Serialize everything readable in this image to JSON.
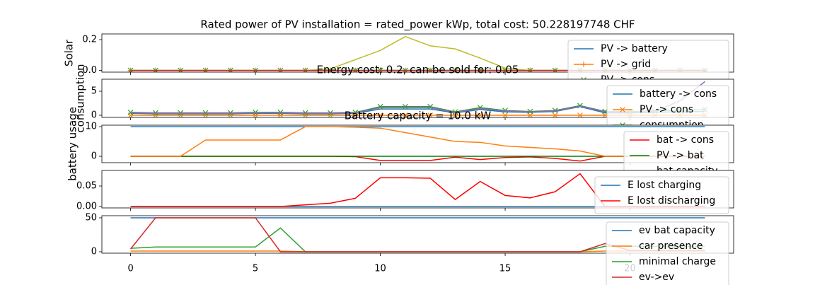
{
  "chart_data": [
    {
      "type": "line",
      "title": "Rated power of PV installation = rated_power kWp, total cost: 50.228197748 CHF",
      "ylabel": "Solar",
      "x": [
        0,
        1,
        2,
        3,
        4,
        5,
        6,
        7,
        8,
        9,
        10,
        11,
        12,
        13,
        14,
        15,
        16,
        17,
        18,
        19,
        20,
        21,
        22,
        23
      ],
      "xlim": [
        -1.15,
        24.15
      ],
      "xticks": [
        0,
        5,
        10,
        15,
        20
      ],
      "ylim": [
        -0.011,
        0.237
      ],
      "yticks": [
        {
          "value": 0,
          "label": "0.0"
        },
        {
          "value": 0.2,
          "label": "0.2"
        }
      ],
      "series": [
        {
          "name": "PV -> battery",
          "color": "#1f77b4",
          "marker": null,
          "values": [
            0,
            0,
            0,
            0,
            0,
            0,
            0,
            0,
            0,
            0,
            0,
            0,
            0,
            0,
            0,
            0,
            0,
            0,
            0,
            0,
            0,
            0,
            0,
            0
          ]
        },
        {
          "name": "PV -> grid",
          "color": "#ff7f0e",
          "marker": "+",
          "values": [
            0,
            0,
            0,
            0,
            0,
            0,
            0,
            0,
            0,
            0,
            0,
            0,
            0,
            0,
            0,
            0,
            0,
            0,
            0,
            0,
            0,
            0,
            0,
            0
          ]
        },
        {
          "name": "PV -> cons",
          "color": "#2ca02c",
          "marker": "x",
          "values": [
            0,
            0,
            0,
            0,
            0,
            0,
            0,
            0,
            0,
            0,
            0,
            0,
            0,
            0,
            0,
            0,
            0,
            0,
            0,
            0,
            0,
            0,
            0,
            0
          ]
        },
        {
          "name": null,
          "color": "#bcbd22",
          "marker": null,
          "values": [
            0,
            0,
            0,
            0,
            0,
            0,
            0,
            0,
            0.01,
            0.07,
            0.13,
            0.22,
            0.16,
            0.14,
            0.08,
            0.015,
            0,
            0,
            0,
            0,
            0,
            0,
            0,
            0
          ]
        },
        {
          "name": null,
          "color": "#d62728",
          "marker": null,
          "values": [
            0,
            0,
            0,
            0,
            0,
            0,
            0,
            0,
            0,
            0,
            0,
            0,
            0,
            0,
            0,
            0,
            0,
            0,
            0,
            0,
            0,
            0,
            0,
            0
          ]
        }
      ]
    },
    {
      "type": "line",
      "title": "Energy cost: 0.2, can be sold for: 0.05",
      "ylabel": "consumption",
      "x": [
        0,
        1,
        2,
        3,
        4,
        5,
        6,
        7,
        8,
        9,
        10,
        11,
        12,
        13,
        14,
        15,
        16,
        17,
        18,
        19,
        20,
        21,
        22,
        23
      ],
      "xlim": [
        -1.15,
        24.15
      ],
      "xticks": [
        0,
        5,
        10,
        15,
        20
      ],
      "ylim": [
        -0.44,
        7.5
      ],
      "yticks": [
        0,
        5
      ],
      "series": [
        {
          "name": "battery -> cons",
          "color": "#1f77b4",
          "marker": null,
          "values": [
            0.4,
            0.3,
            0.3,
            0.3,
            0.3,
            0.4,
            0.4,
            0.3,
            0.3,
            0.4,
            1.3,
            1.3,
            1.3,
            0.5,
            1.2,
            0.7,
            0.6,
            0.8,
            1.8,
            0.5,
            0.5,
            0.6,
            0.7,
            0.8
          ]
        },
        {
          "name": "PV -> cons",
          "color": "#ff7f0e",
          "marker": "x",
          "values": [
            0,
            0,
            0,
            0,
            0,
            0,
            0,
            0,
            0,
            0,
            0,
            0,
            0,
            0,
            0,
            0,
            0,
            0,
            0,
            0,
            0,
            0,
            0,
            0
          ]
        },
        {
          "name": "consumption",
          "color": "#2ca02c",
          "marker": "x",
          "values": [
            0.6,
            0.5,
            0.5,
            0.5,
            0.5,
            0.6,
            0.6,
            0.5,
            0.5,
            0.6,
            1.8,
            1.8,
            1.8,
            0.7,
            1.6,
            1.0,
            0.8,
            1.0,
            2.0,
            0.8,
            0.8,
            0.9,
            1.0,
            1.2
          ]
        },
        {
          "name": null,
          "color": "#9467bd",
          "marker": null,
          "values": [
            0.5,
            0.4,
            0.4,
            0.4,
            0.4,
            0.5,
            0.5,
            0.4,
            0.4,
            0.5,
            1.6,
            1.6,
            1.6,
            0.6,
            1.4,
            0.9,
            0.7,
            0.9,
            1.9,
            0.7,
            0.7,
            0.8,
            3.0,
            7.0
          ]
        }
      ]
    },
    {
      "type": "line",
      "title": "Battery capacity = 10.0 kW",
      "ylabel": "battery usage",
      "x": [
        0,
        1,
        2,
        3,
        4,
        5,
        6,
        7,
        8,
        9,
        10,
        11,
        12,
        13,
        14,
        15,
        16,
        17,
        18,
        19,
        20,
        21,
        22,
        23
      ],
      "xlim": [
        -1.15,
        24.15
      ],
      "xticks": [
        0,
        5,
        10,
        15,
        20
      ],
      "ylim": [
        -2.14,
        10.5
      ],
      "yticks": [
        0,
        10
      ],
      "series": [
        {
          "name": "bat -> cons",
          "color": "#ff0000",
          "marker": null,
          "values": [
            0,
            0,
            0,
            0,
            0,
            0,
            0,
            0,
            0,
            -0.1,
            -1.4,
            -1.4,
            -1.4,
            -0.3,
            -1.1,
            -0.4,
            -0.2,
            -0.7,
            -1.6,
            0,
            0,
            0,
            0,
            0
          ]
        },
        {
          "name": "PV -> bat",
          "color": "#008000",
          "marker": null,
          "values": [
            0,
            0,
            0,
            0,
            0,
            0,
            0,
            0,
            0,
            0,
            0,
            0,
            0,
            0,
            0,
            0,
            0,
            0,
            0,
            0,
            0,
            0,
            0,
            0
          ]
        },
        {
          "name": "bat capacity",
          "color": "#1f77b4",
          "marker": null,
          "values": [
            10,
            10,
            10,
            10,
            10,
            10,
            10,
            10,
            10,
            10,
            10,
            10,
            10,
            10,
            10,
            10,
            10,
            10,
            10,
            10,
            10,
            10,
            10,
            10
          ]
        },
        {
          "name": null,
          "color": "#ff7f0e",
          "marker": null,
          "values": [
            0,
            0,
            0,
            5.5,
            5.5,
            5.5,
            5.5,
            10,
            10,
            9.8,
            9.5,
            8,
            6.5,
            5,
            4.7,
            3.5,
            3,
            2.5,
            1.8,
            0,
            0,
            0,
            0,
            0
          ]
        }
      ]
    },
    {
      "type": "line",
      "title": null,
      "ylabel": null,
      "x": [
        0,
        1,
        2,
        3,
        4,
        5,
        6,
        7,
        8,
        9,
        10,
        11,
        12,
        13,
        14,
        15,
        16,
        17,
        18,
        19,
        20,
        21,
        22,
        23
      ],
      "xlim": [
        -1.15,
        24.15
      ],
      "xticks": [
        0,
        5,
        10,
        15,
        20
      ],
      "ylim": [
        -0.0035,
        0.088
      ],
      "yticks": [
        {
          "value": 0,
          "label": "0.00"
        },
        {
          "value": 0.05,
          "label": "0.05"
        }
      ],
      "series": [
        {
          "name": "E lost charging",
          "color": "#1f77b4",
          "marker": null,
          "values": [
            0,
            0,
            0,
            0,
            0,
            0,
            0,
            0,
            0,
            0,
            0,
            0,
            0,
            0,
            0,
            0,
            0,
            0,
            0,
            0,
            0,
            0,
            0,
            0
          ]
        },
        {
          "name": "E lost discharging",
          "color": "#ff0000",
          "marker": null,
          "values": [
            0,
            0,
            0,
            0,
            0,
            0,
            0,
            0.004,
            0.008,
            0.02,
            0.07,
            0.07,
            0.069,
            0.017,
            0.061,
            0.027,
            0.021,
            0.036,
            0.08,
            0,
            0,
            0,
            0,
            0
          ]
        }
      ]
    },
    {
      "type": "line",
      "title": null,
      "ylabel": null,
      "x": [
        0,
        1,
        2,
        3,
        4,
        5,
        6,
        7,
        8,
        9,
        10,
        11,
        12,
        13,
        14,
        15,
        16,
        17,
        18,
        19,
        20,
        21,
        22,
        23
      ],
      "xlim": [
        -1.15,
        24.15
      ],
      "xticks": [
        0,
        5,
        10,
        15,
        20
      ],
      "ylim": [
        -2.1,
        53.1
      ],
      "yticks": [
        0,
        50
      ],
      "series": [
        {
          "name": "ev bat capacity",
          "color": "#1f77b4",
          "marker": null,
          "values": [
            50,
            50,
            50,
            50,
            50,
            50,
            50,
            50,
            50,
            50,
            50,
            50,
            50,
            50,
            50,
            50,
            50,
            50,
            50,
            50,
            50,
            50,
            50,
            50
          ]
        },
        {
          "name": "car presence",
          "color": "#ff7f0e",
          "marker": null,
          "values": [
            1,
            1,
            1,
            1,
            1,
            1,
            1,
            0,
            0,
            0,
            0,
            0,
            0,
            0,
            0,
            0,
            0,
            0,
            0,
            1,
            1,
            1,
            1,
            1
          ]
        },
        {
          "name": "minimal charge",
          "color": "#2ca02c",
          "marker": null,
          "values": [
            5,
            7,
            7,
            7,
            7,
            7,
            35,
            0,
            0,
            0,
            0,
            0,
            0,
            0,
            0,
            0,
            0,
            0,
            0,
            8,
            8,
            8,
            8,
            8
          ]
        },
        {
          "name": "ev->ev",
          "color": "#d62728",
          "marker": null,
          "values": [
            4,
            50,
            50,
            50,
            50,
            50,
            0,
            0,
            0,
            0,
            0,
            0,
            0,
            0,
            0,
            0,
            0,
            0,
            0,
            12,
            2,
            2,
            2,
            2
          ]
        }
      ]
    }
  ]
}
